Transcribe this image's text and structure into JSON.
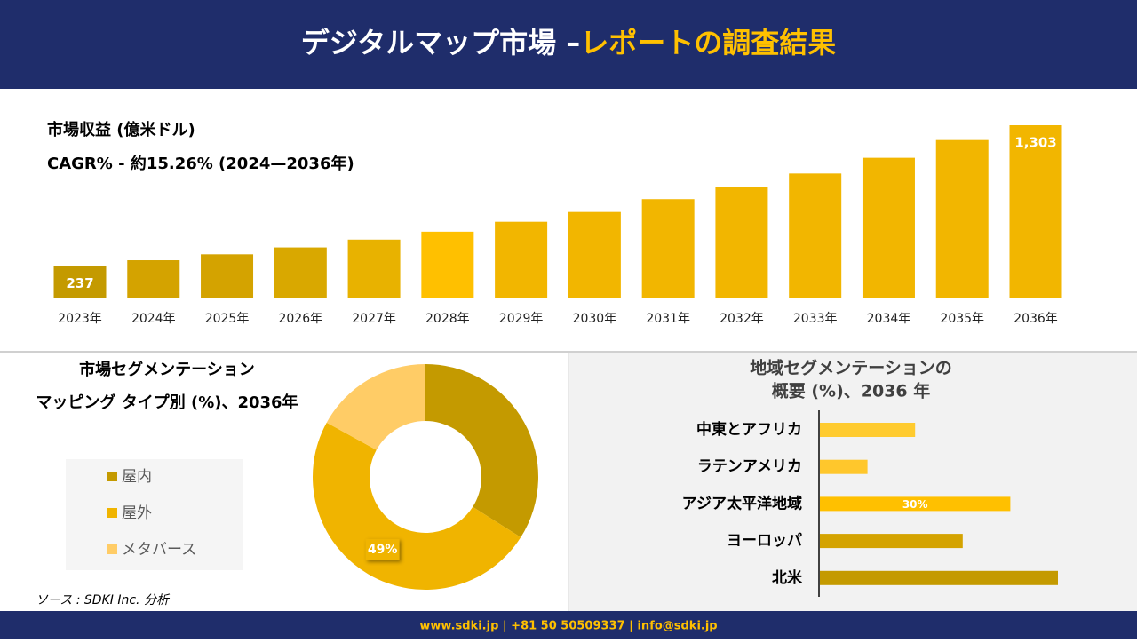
{
  "header": {
    "title": "デジタルマップ市場 –",
    "subtitle": "レポートの調査結果"
  },
  "chart_data": [
    {
      "type": "bar",
      "title": "市場収益 (億米ドル)",
      "subtitle": "CAGR% - 約15.26% (2024—2036年)",
      "categories": [
        "2023年",
        "2024年",
        "2025年",
        "2026年",
        "2027年",
        "2028年",
        "2029年",
        "2030年",
        "2031年",
        "2032年",
        "2033年",
        "2034年",
        "2035年",
        "2036年"
      ],
      "values": [
        237,
        282,
        327,
        379,
        438,
        498,
        573,
        647,
        744,
        834,
        938,
        1057,
        1191,
        1303
      ],
      "value_labels": [
        "237",
        null,
        null,
        null,
        null,
        null,
        null,
        null,
        null,
        null,
        null,
        null,
        null,
        "1,303"
      ],
      "colors": [
        "#c49a00",
        "#d4a300",
        "#d4a300",
        "#d9a800",
        "#e8b200",
        "#ffc000",
        "#f2b600",
        "#f2b600",
        "#f2b600",
        "#f2b600",
        "#f2b600",
        "#f2b600",
        "#f2b600",
        "#f2b600"
      ]
    },
    {
      "type": "donut",
      "title": "市場セグメンテーション",
      "subtitle": "マッピング タイプ別 (%)、2036年",
      "categories": [
        "屋内",
        "屋外",
        "メタバース"
      ],
      "values": [
        34,
        49,
        17
      ],
      "value_labels": [
        null,
        "49%",
        null
      ],
      "colors": [
        "#c49a00",
        "#f0b400",
        "#ffcc66"
      ]
    },
    {
      "type": "barh",
      "title": "地域セグメンテーションの",
      "subtitle": "概要 (%)、2036 年",
      "categories": [
        "中東とアフリカ",
        "ラテンアメリカ",
        "アジア太平洋地域",
        "ヨーロッパ",
        "北米"
      ],
      "values": [
        15,
        7.5,
        30,
        22.5,
        37.5
      ],
      "value_labels": [
        null,
        null,
        "30%",
        null,
        null
      ],
      "colors": [
        "#ffcb2f",
        "#ffc72c",
        "#ffc000",
        "#d4a300",
        "#c49a00"
      ]
    }
  ],
  "source": "ソース : SDKI Inc. 分析",
  "footer": "www.sdki.jp | +81 50 50509337 | info@sdki.jp"
}
